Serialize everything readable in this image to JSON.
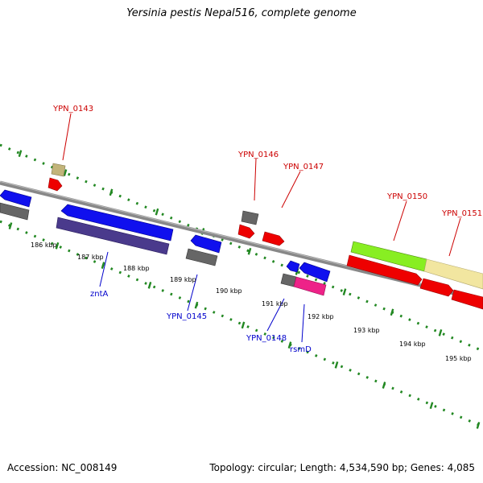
{
  "header": {
    "title": "Yersinia pestis Nepal516, complete genome"
  },
  "footer": {
    "accession": "Accession: NC_008149",
    "topology": "Topology: circular; Length: 4,534,590 bp; Genes: 4,085"
  },
  "colors": {
    "forward_gene": "#ee0000",
    "reverse_gene": "#0000ee",
    "tick_mark": "#228822",
    "backbone": "#888888"
  },
  "map": {
    "ticks": [
      "186 kbp",
      "187 kbp",
      "188 kbp",
      "189 kbp",
      "190 kbp",
      "191 kbp",
      "192 kbp",
      "193 kbp",
      "194 kbp",
      "195 kbp"
    ],
    "top_labels": [
      "YPN_0143",
      "YPN_0146",
      "YPN_0147",
      "YPN_0150",
      "YPN_0151"
    ],
    "bottom_labels": [
      "zntA",
      "YPN_0145",
      "YPN_0148",
      "rsmD"
    ]
  }
}
